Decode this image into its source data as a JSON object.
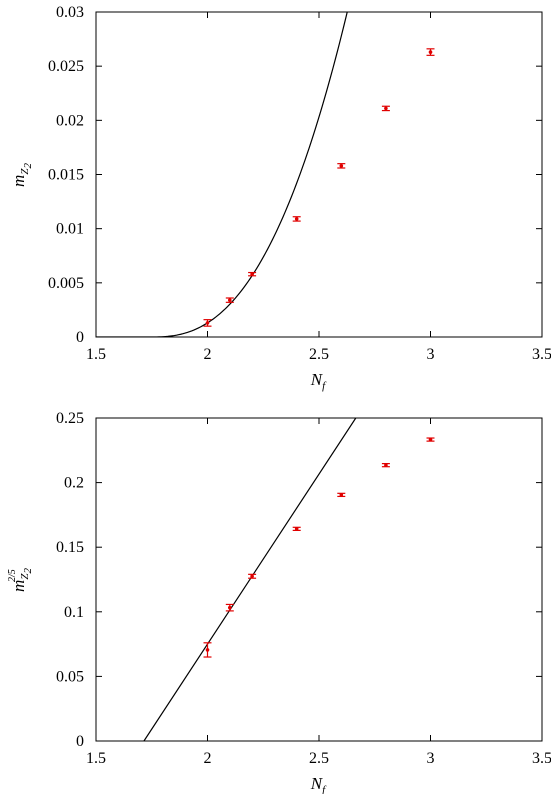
{
  "chart_data": [
    {
      "type": "scatter",
      "xlabel": "N",
      "xlabel_sub": "f",
      "ylabel": "m",
      "ylabel_sub": "Z",
      "ylabel_subsub": "2",
      "xlim": [
        1.5,
        3.5
      ],
      "ylim": [
        0,
        0.03
      ],
      "xticks": [
        1.5,
        2,
        2.5,
        3,
        3.5
      ],
      "xtick_labels": [
        "1.5",
        "2",
        "2.5",
        "3",
        "3.5"
      ],
      "yticks": [
        0,
        0.005,
        0.01,
        0.015,
        0.02,
        0.025,
        0.03
      ],
      "ytick_labels": [
        "0",
        "0.005",
        "0.01",
        "0.015",
        "0.02",
        "0.025",
        "0.03"
      ],
      "grid": false,
      "points": [
        {
          "x": 2.0,
          "y": 0.0013,
          "err": 0.0003
        },
        {
          "x": 2.1,
          "y": 0.0034,
          "err": 0.0002
        },
        {
          "x": 2.2,
          "y": 0.0058,
          "err": 0.00015
        },
        {
          "x": 2.4,
          "y": 0.0109,
          "err": 0.0002
        },
        {
          "x": 2.6,
          "y": 0.0158,
          "err": 0.0002
        },
        {
          "x": 2.8,
          "y": 0.0211,
          "err": 0.0002
        },
        {
          "x": 3.0,
          "y": 0.0263,
          "err": 0.0003
        }
      ],
      "fit": {
        "form": "a*(x-x0)^2.5",
        "a": 0.0417,
        "x0": 1.75,
        "x_end": 2.67
      },
      "colors": {
        "points": "#e00000",
        "fit": "#000000"
      }
    },
    {
      "type": "scatter",
      "xlabel": "N",
      "xlabel_sub": "f",
      "ylabel": "m",
      "ylabel_sub": "Z",
      "ylabel_subsub": "2",
      "ylabel_sup": "2/5",
      "xlim": [
        1.5,
        3.5
      ],
      "ylim": [
        0,
        0.25
      ],
      "xticks": [
        1.5,
        2,
        2.5,
        3,
        3.5
      ],
      "xtick_labels": [
        "1.5",
        "2",
        "2.5",
        "3",
        "3.5"
      ],
      "yticks": [
        0,
        0.05,
        0.1,
        0.15,
        0.2,
        0.25
      ],
      "ytick_labels": [
        "0",
        "0.05",
        "0.1",
        "0.15",
        "0.2",
        "0.25"
      ],
      "grid": false,
      "points": [
        {
          "x": 2.0,
          "y": 0.0705,
          "err": 0.0055
        },
        {
          "x": 2.1,
          "y": 0.1032,
          "err": 0.0025
        },
        {
          "x": 2.2,
          "y": 0.1275,
          "err": 0.0015
        },
        {
          "x": 2.4,
          "y": 0.1642,
          "err": 0.0012
        },
        {
          "x": 2.6,
          "y": 0.1905,
          "err": 0.0012
        },
        {
          "x": 2.8,
          "y": 0.2135,
          "err": 0.0012
        },
        {
          "x": 3.0,
          "y": 0.2333,
          "err": 0.0012
        }
      ],
      "fit": {
        "form": "linear",
        "x0": 1.715,
        "y0": 0.0,
        "x1": 2.665,
        "y1": 0.25
      },
      "colors": {
        "points": "#e00000",
        "fit": "#000000"
      }
    }
  ]
}
